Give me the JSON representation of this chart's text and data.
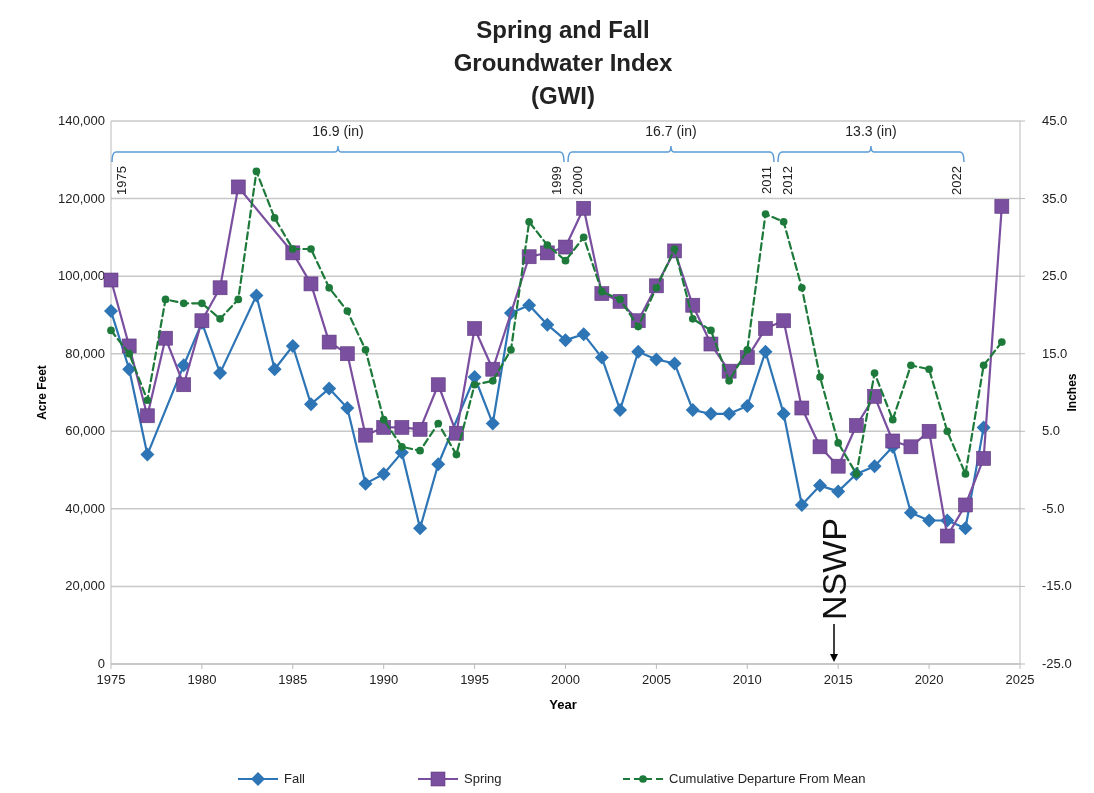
{
  "chart_data": {
    "type": "line",
    "title": "Spring and Fall Groundwater Index (GWI)",
    "xlabel": "Year",
    "ylabel": "Acre Feet",
    "y2label": "Inches",
    "xlim": [
      1975,
      2025
    ],
    "xticks": [
      1975,
      1980,
      1985,
      1990,
      1995,
      2000,
      2005,
      2010,
      2015,
      2020,
      2025
    ],
    "ylim": [
      0,
      140000
    ],
    "yticks": [
      0,
      {
        "value": 20000,
        "label": "20,000"
      },
      {
        "value": 40000,
        "label": "40,000"
      },
      {
        "value": 60000,
        "label": "60,000"
      },
      {
        "value": 80000,
        "label": "80,000"
      },
      {
        "value": 100000,
        "label": "100,000"
      },
      {
        "value": 120000,
        "label": "120,000"
      },
      {
        "value": 140000,
        "label": "140,000"
      }
    ],
    "y2lim": [
      -25,
      45
    ],
    "y2ticks": [
      {
        "value": -25,
        "label": "-25.0"
      },
      {
        "value": -15,
        "label": "-15.0"
      },
      {
        "value": -5,
        "label": "-5.0"
      },
      {
        "value": 5,
        "label": "5.0"
      },
      {
        "value": 15,
        "label": "15.0"
      },
      {
        "value": 25,
        "label": "25.0"
      },
      {
        "value": 35,
        "label": "35.0"
      },
      {
        "value": 45,
        "label": "45.0"
      }
    ],
    "grid": "y",
    "legend": "bottom",
    "series": [
      {
        "name": "Fall",
        "color": "#2e75b6",
        "marker": "diamond",
        "x": [
          1975,
          1976,
          1977,
          1979,
          1980,
          1981,
          1983,
          1984,
          1985,
          1986,
          1987,
          1988,
          1989,
          1990,
          1991,
          1992,
          1993,
          1995,
          1996,
          1997,
          1998,
          1999,
          2000,
          2001,
          2002,
          2003,
          2004,
          2005,
          2006,
          2007,
          2008,
          2009,
          2010,
          2011,
          2012,
          2013,
          2014,
          2015,
          2016,
          2017,
          2018,
          2019,
          2020,
          2021,
          2022,
          2023
        ],
        "values": [
          91000,
          76000,
          54000,
          77000,
          88000,
          75000,
          95000,
          76000,
          82000,
          67000,
          71000,
          66000,
          46500,
          49000,
          54500,
          35000,
          51500,
          74000,
          62000,
          90500,
          92500,
          87500,
          83500,
          85000,
          79000,
          65500,
          80500,
          78500,
          77500,
          65500,
          64500,
          64500,
          66500,
          80500,
          64500,
          41000,
          46000,
          44500,
          49000,
          51000,
          56000,
          39000,
          37000,
          37000,
          35000,
          61000
        ]
      },
      {
        "name": "Spring",
        "color": "#7a4f9f",
        "marker": "square",
        "x": [
          1975,
          1976,
          1977,
          1978,
          1979,
          1980,
          1981,
          1982,
          1985,
          1986,
          1987,
          1988,
          1989,
          1990,
          1991,
          1992,
          1993,
          1994,
          1995,
          1996,
          1998,
          1999,
          2000,
          2001,
          2002,
          2003,
          2004,
          2005,
          2006,
          2007,
          2008,
          2009,
          2010,
          2011,
          2012,
          2013,
          2014,
          2015,
          2016,
          2017,
          2018,
          2019,
          2020,
          2021,
          2022,
          2023,
          2024
        ],
        "values": [
          99000,
          82000,
          64000,
          84000,
          72000,
          88500,
          97000,
          123000,
          106000,
          98000,
          83000,
          80000,
          59000,
          61000,
          61000,
          60500,
          72000,
          59500,
          86500,
          76000,
          105000,
          106000,
          107500,
          117500,
          95500,
          93500,
          88500,
          97500,
          106500,
          92500,
          82500,
          75500,
          79000,
          86500,
          88500,
          66000,
          56000,
          51000,
          61500,
          69000,
          57500,
          56000,
          60000,
          33000,
          41000,
          53000,
          118000
        ]
      },
      {
        "name": "Cumulative Departure From Mean",
        "color": "#1e7a3a",
        "marker": "circle",
        "line_style": "dashed",
        "axis": "y2",
        "x": [
          1975,
          1976,
          1977,
          1978,
          1979,
          1980,
          1981,
          1982,
          1983,
          1984,
          1985,
          1986,
          1987,
          1988,
          1989,
          1990,
          1991,
          1992,
          1993,
          1994,
          1995,
          1996,
          1997,
          1998,
          1999,
          2000,
          2001,
          2002,
          2003,
          2004,
          2005,
          2006,
          2007,
          2008,
          2009,
          2010,
          2011,
          2012,
          2013,
          2014,
          2015,
          2016,
          2017,
          2018,
          2019,
          2020,
          2021,
          2022,
          2023,
          2024
        ],
        "values": [
          18,
          15,
          9,
          22,
          21.5,
          21.5,
          19.5,
          22,
          38.5,
          32.5,
          28.5,
          28.5,
          23.5,
          20.5,
          15.5,
          6.5,
          3,
          2.5,
          6,
          2,
          11,
          11.5,
          15.5,
          32,
          29,
          27,
          30,
          23,
          22,
          18.5,
          23.5,
          28.5,
          19.5,
          18,
          11.5,
          15.5,
          33,
          32,
          23.5,
          12,
          3.5,
          -0.5,
          12.5,
          6.5,
          13.5,
          13,
          5,
          -0.5,
          13.5,
          16.5
        ]
      }
    ],
    "annotations": [
      "16.9 (in)",
      "16.7 (in)",
      "13.3 (in)",
      "1975",
      "1999",
      "2000",
      "2011",
      "2012",
      "2022",
      "NSWP"
    ]
  }
}
